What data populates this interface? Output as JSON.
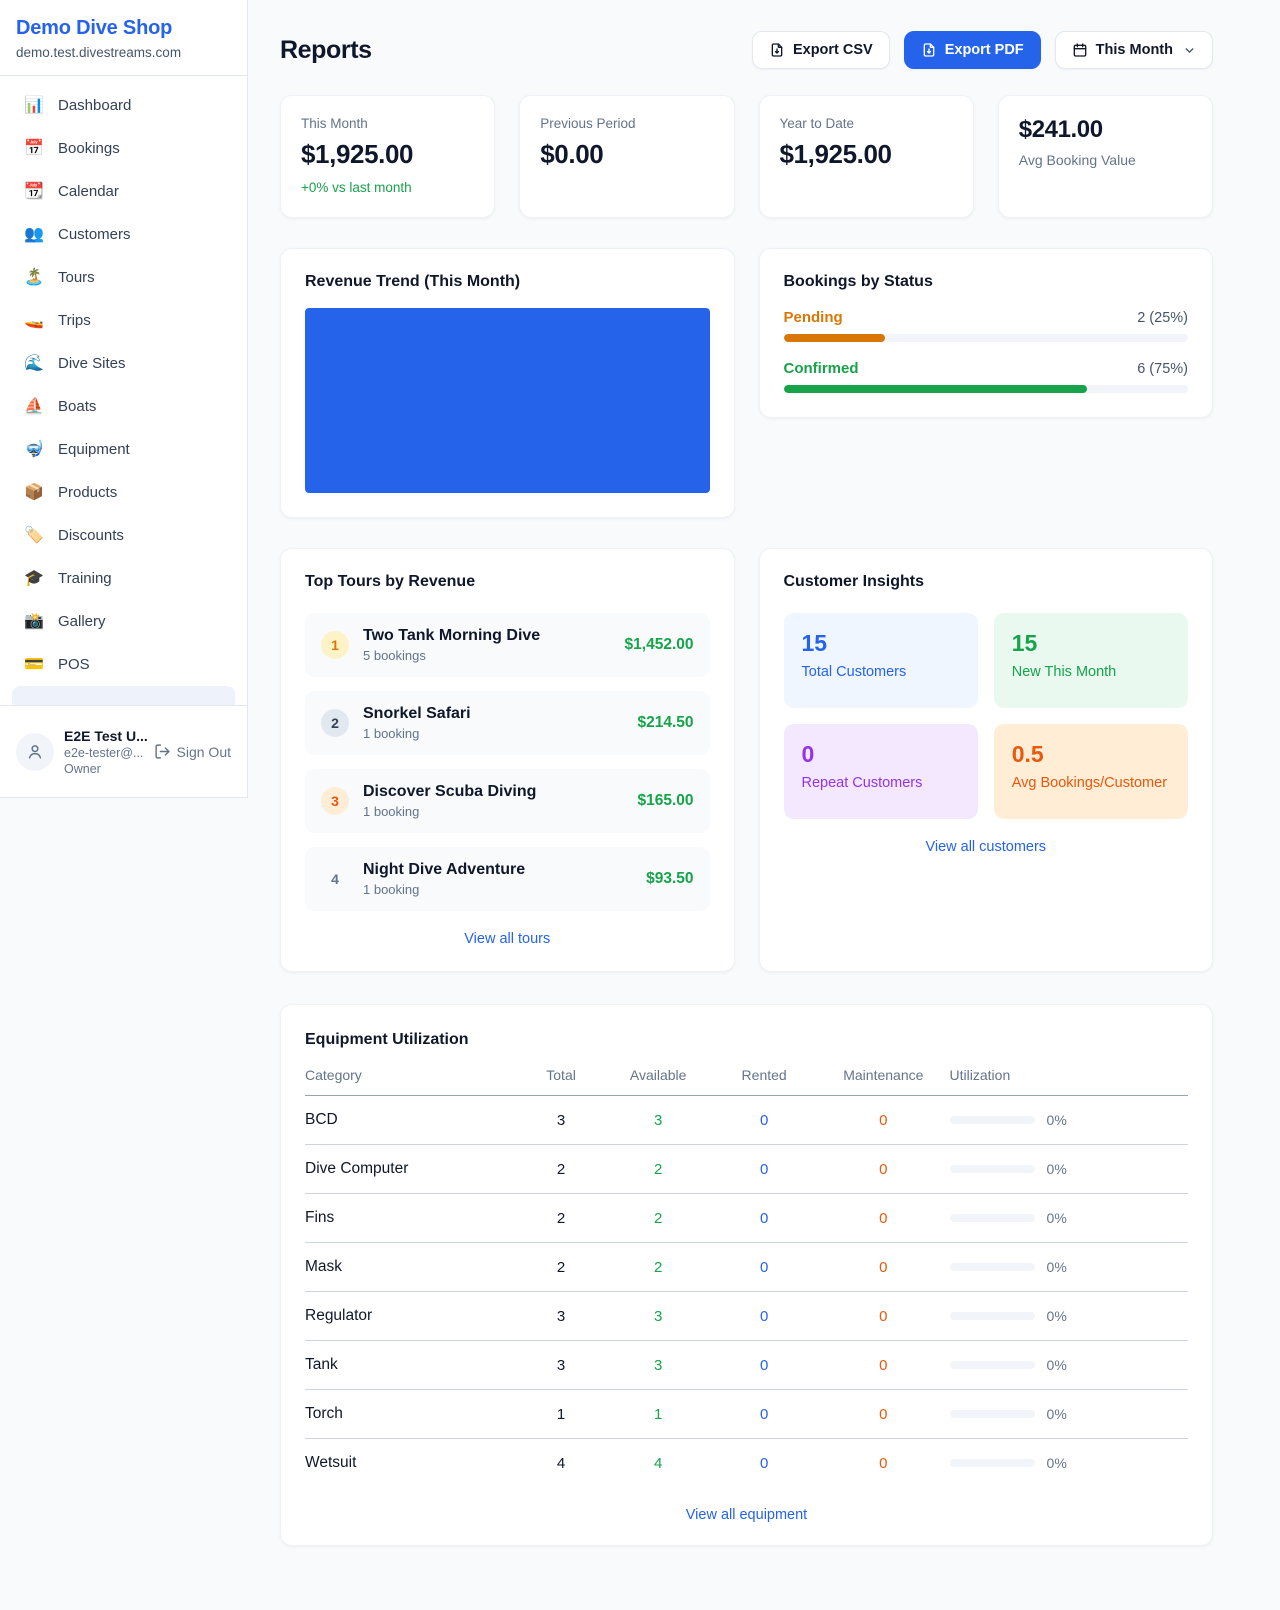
{
  "colors": {
    "accent": "#2563eb",
    "positive": "#16a34a",
    "pending": "#d97706",
    "maintenance": "#ea580c",
    "repeat": "#9333ea"
  },
  "sidebar": {
    "brand": {
      "name": "Demo Dive Shop",
      "domain": "demo.test.divestreams.com"
    },
    "nav": [
      {
        "label": "Dashboard",
        "icon": "📊"
      },
      {
        "label": "Bookings",
        "icon": "📅"
      },
      {
        "label": "Calendar",
        "icon": "📆"
      },
      {
        "label": "Customers",
        "icon": "👥"
      },
      {
        "label": "Tours",
        "icon": "🏝️"
      },
      {
        "label": "Trips",
        "icon": "🚤"
      },
      {
        "label": "Dive Sites",
        "icon": "🌊"
      },
      {
        "label": "Boats",
        "icon": "⛵"
      },
      {
        "label": "Equipment",
        "icon": "🤿"
      },
      {
        "label": "Products",
        "icon": "📦"
      },
      {
        "label": "Discounts",
        "icon": "🏷️"
      },
      {
        "label": "Training",
        "icon": "🎓"
      },
      {
        "label": "Gallery",
        "icon": "📸"
      },
      {
        "label": "POS",
        "icon": "💳"
      }
    ],
    "user": {
      "name": "E2E Test U...",
      "email": "e2e-tester@...",
      "role": "Owner",
      "sign_out_label": "Sign Out"
    }
  },
  "header": {
    "title": "Reports",
    "export_csv_label": "Export CSV",
    "export_pdf_label": "Export PDF",
    "period_label": "This Month"
  },
  "stats": [
    {
      "label": "This Month",
      "value": "$1,925.00",
      "delta": "+0% vs last month"
    },
    {
      "label": "Previous Period",
      "value": "$0.00"
    },
    {
      "label": "Year to Date",
      "value": "$1,925.00"
    },
    {
      "label": "Avg Booking Value",
      "value": "$241.00"
    }
  ],
  "revenue_trend": {
    "title": "Revenue Trend (This Month)",
    "bar_color": "#2563eb"
  },
  "bookings_by_status": {
    "title": "Bookings by Status",
    "rows": [
      {
        "label": "Pending",
        "count_text": "2 (25%)",
        "pct": 25,
        "color": "#d97706"
      },
      {
        "label": "Confirmed",
        "count_text": "6 (75%)",
        "pct": 75,
        "color": "#16a34a"
      }
    ]
  },
  "top_tours": {
    "title": "Top Tours by Revenue",
    "items": [
      {
        "rank": "1",
        "name": "Two Tank Morning Dive",
        "bookings": "5 bookings",
        "revenue": "$1,452.00"
      },
      {
        "rank": "2",
        "name": "Snorkel Safari",
        "bookings": "1 booking",
        "revenue": "$214.50"
      },
      {
        "rank": "3",
        "name": "Discover Scuba Diving",
        "bookings": "1 booking",
        "revenue": "$165.00"
      },
      {
        "rank": "4",
        "name": "Night Dive Adventure",
        "bookings": "1 booking",
        "revenue": "$93.50"
      }
    ],
    "view_all_label": "View all tours"
  },
  "customer_insights": {
    "title": "Customer Insights",
    "tiles": [
      {
        "value": "15",
        "label": "Total Customers"
      },
      {
        "value": "15",
        "label": "New This Month"
      },
      {
        "value": "0",
        "label": "Repeat Customers"
      },
      {
        "value": "0.5",
        "label": "Avg Bookings/Customer"
      }
    ],
    "view_all_label": "View all customers"
  },
  "equipment": {
    "title": "Equipment Utilization",
    "columns": [
      "Category",
      "Total",
      "Available",
      "Rented",
      "Maintenance",
      "Utilization"
    ],
    "rows": [
      {
        "category": "BCD",
        "total": "3",
        "available": "3",
        "rented": "0",
        "maintenance": "0",
        "utilization_text": "0%",
        "utilization_pct": 0
      },
      {
        "category": "Dive Computer",
        "total": "2",
        "available": "2",
        "rented": "0",
        "maintenance": "0",
        "utilization_text": "0%",
        "utilization_pct": 0
      },
      {
        "category": "Fins",
        "total": "2",
        "available": "2",
        "rented": "0",
        "maintenance": "0",
        "utilization_text": "0%",
        "utilization_pct": 0
      },
      {
        "category": "Mask",
        "total": "2",
        "available": "2",
        "rented": "0",
        "maintenance": "0",
        "utilization_text": "0%",
        "utilization_pct": 0
      },
      {
        "category": "Regulator",
        "total": "3",
        "available": "3",
        "rented": "0",
        "maintenance": "0",
        "utilization_text": "0%",
        "utilization_pct": 0
      },
      {
        "category": "Tank",
        "total": "3",
        "available": "3",
        "rented": "0",
        "maintenance": "0",
        "utilization_text": "0%",
        "utilization_pct": 0
      },
      {
        "category": "Torch",
        "total": "1",
        "available": "1",
        "rented": "0",
        "maintenance": "0",
        "utilization_text": "0%",
        "utilization_pct": 0
      },
      {
        "category": "Wetsuit",
        "total": "4",
        "available": "4",
        "rented": "0",
        "maintenance": "0",
        "utilization_text": "0%",
        "utilization_pct": 0
      }
    ],
    "view_all_label": "View all equipment"
  },
  "chart_data": {
    "type": "bar",
    "title": "Revenue Trend (This Month)",
    "note": "single full-area bar rendered as solid block",
    "series": [
      {
        "name": "Revenue",
        "values": [
          1925.0
        ]
      }
    ],
    "categories": [
      "This Month"
    ],
    "color": "#2563eb"
  }
}
